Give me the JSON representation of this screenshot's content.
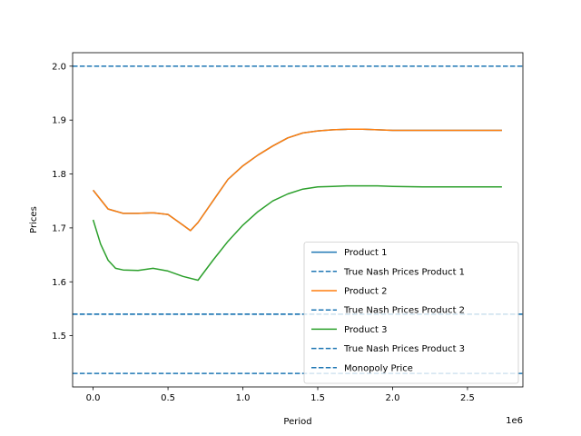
{
  "chart_data": {
    "type": "line",
    "xlabel": "Period",
    "ylabel": "Prices",
    "x_offset_label": "1e6",
    "xlim": [
      -0.137,
      2.87
    ],
    "ylim": [
      1.405,
      2.025
    ],
    "x_ticks": [
      0.0,
      0.5,
      1.0,
      1.5,
      2.0,
      2.5
    ],
    "x_tick_labels": [
      "0.0",
      "0.5",
      "1.0",
      "1.5",
      "2.0",
      "2.5"
    ],
    "y_ticks": [
      1.5,
      1.6,
      1.7,
      1.8,
      1.9,
      2.0
    ],
    "y_tick_labels": [
      "1.5",
      "1.6",
      "1.7",
      "1.8",
      "1.9",
      "2.0"
    ],
    "legend_position": "lower-right",
    "grid": false,
    "series": [
      {
        "name": "Product 1",
        "color": "#1f77b4",
        "style": "solid",
        "x": [
          0,
          0.1,
          0.2,
          0.3,
          0.4,
          0.5,
          0.6,
          0.65,
          0.7,
          0.8,
          0.9,
          1.0,
          1.1,
          1.2,
          1.3,
          1.4,
          1.5,
          1.6,
          1.7,
          1.8,
          1.9,
          2.0,
          2.2,
          2.4,
          2.6,
          2.73
        ],
        "y": [
          1.77,
          1.735,
          1.727,
          1.727,
          1.728,
          1.725,
          1.705,
          1.695,
          1.71,
          1.75,
          1.79,
          1.815,
          1.835,
          1.852,
          1.867,
          1.876,
          1.88,
          1.882,
          1.883,
          1.883,
          1.882,
          1.881,
          1.881,
          1.881,
          1.881,
          1.881
        ]
      },
      {
        "name": "True Nash Prices Product 1",
        "color": "#1f77b4",
        "style": "dashed",
        "value": 1.54
      },
      {
        "name": "Product 2",
        "color": "#ff7f0e",
        "style": "solid",
        "x": [
          0,
          0.1,
          0.2,
          0.3,
          0.4,
          0.5,
          0.6,
          0.65,
          0.7,
          0.8,
          0.9,
          1.0,
          1.1,
          1.2,
          1.3,
          1.4,
          1.5,
          1.6,
          1.7,
          1.8,
          1.9,
          2.0,
          2.2,
          2.4,
          2.6,
          2.73
        ],
        "y": [
          1.77,
          1.735,
          1.727,
          1.727,
          1.728,
          1.725,
          1.705,
          1.695,
          1.71,
          1.75,
          1.79,
          1.815,
          1.835,
          1.852,
          1.867,
          1.876,
          1.88,
          1.882,
          1.883,
          1.883,
          1.882,
          1.881,
          1.881,
          1.881,
          1.881,
          1.881
        ]
      },
      {
        "name": "True Nash Prices Product 2",
        "color": "#1f77b4",
        "style": "dashed",
        "value": 1.54
      },
      {
        "name": "Product 3",
        "color": "#2ca02c",
        "style": "solid",
        "x": [
          0,
          0.05,
          0.1,
          0.15,
          0.2,
          0.3,
          0.4,
          0.5,
          0.6,
          0.7,
          0.8,
          0.9,
          1.0,
          1.1,
          1.2,
          1.3,
          1.4,
          1.5,
          1.6,
          1.7,
          1.8,
          1.9,
          2.0,
          2.2,
          2.4,
          2.6,
          2.73
        ],
        "y": [
          1.715,
          1.67,
          1.64,
          1.625,
          1.622,
          1.621,
          1.625,
          1.62,
          1.61,
          1.603,
          1.64,
          1.675,
          1.705,
          1.73,
          1.75,
          1.763,
          1.772,
          1.776,
          1.777,
          1.778,
          1.778,
          1.778,
          1.777,
          1.776,
          1.776,
          1.776,
          1.776
        ]
      },
      {
        "name": "True Nash Prices Product 3",
        "color": "#1f77b4",
        "style": "dashed",
        "value": 1.43
      },
      {
        "name": "Monopoly Price",
        "color": "#1f77b4",
        "style": "dashed",
        "value": 2.0
      }
    ]
  }
}
